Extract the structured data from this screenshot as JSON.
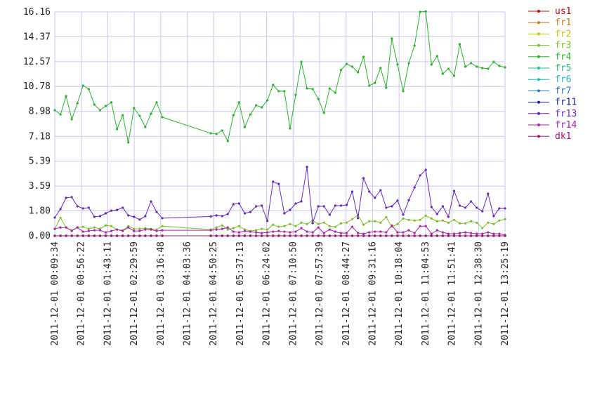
{
  "chart_data": {
    "type": "line",
    "x": [
      "2011-12-01 00:09:34",
      "2011-12-01 00:19:34",
      "2011-12-01 00:29:34",
      "2011-12-01 00:39:34",
      "2011-12-01 00:49:34",
      "2011-12-01 00:59:34",
      "2011-12-01 01:09:34",
      "2011-12-01 01:19:34",
      "2011-12-01 01:29:34",
      "2011-12-01 01:39:34",
      "2011-12-01 01:49:34",
      "2011-12-01 01:59:34",
      "2011-12-01 02:09:34",
      "2011-12-01 02:19:34",
      "2011-12-01 02:29:34",
      "2011-12-01 02:39:34",
      "2011-12-01 02:49:34",
      "2011-12-01 02:59:34",
      "2011-12-01 03:09:34",
      "2011-12-01 03:19:34",
      "2011-12-01 04:45:19",
      "2011-12-01 04:55:19",
      "2011-12-01 05:05:19",
      "2011-12-01 05:15:19",
      "2011-12-01 05:25:19",
      "2011-12-01 05:35:19",
      "2011-12-01 05:45:19",
      "2011-12-01 05:55:19",
      "2011-12-01 06:05:19",
      "2011-12-01 06:15:19",
      "2011-12-01 06:25:19",
      "2011-12-01 06:35:19",
      "2011-12-01 06:45:19",
      "2011-12-01 06:55:19",
      "2011-12-01 07:05:19",
      "2011-12-01 07:15:19",
      "2011-12-01 07:25:19",
      "2011-12-01 07:35:19",
      "2011-12-01 07:45:19",
      "2011-12-01 07:55:19",
      "2011-12-01 08:05:19",
      "2011-12-01 08:15:19",
      "2011-12-01 08:25:19",
      "2011-12-01 08:35:19",
      "2011-12-01 08:45:19",
      "2011-12-01 08:55:19",
      "2011-12-01 09:05:19",
      "2011-12-01 09:15:19",
      "2011-12-01 09:25:19",
      "2011-12-01 09:35:19",
      "2011-12-01 09:45:19",
      "2011-12-01 09:55:19",
      "2011-12-01 10:05:19",
      "2011-12-01 10:15:19",
      "2011-12-01 10:25:19",
      "2011-12-01 10:35:19",
      "2011-12-01 10:45:19",
      "2011-12-01 10:55:19",
      "2011-12-01 11:05:19",
      "2011-12-01 11:15:19",
      "2011-12-01 11:25:19",
      "2011-12-01 11:35:19",
      "2011-12-01 11:45:19",
      "2011-12-01 11:55:19",
      "2011-12-01 12:05:19",
      "2011-12-01 12:15:19",
      "2011-12-01 12:25:19",
      "2011-12-01 12:35:19",
      "2011-12-01 12:45:19",
      "2011-12-01 12:55:19",
      "2011-12-01 13:05:19",
      "2011-12-01 13:15:19",
      "2011-12-01 13:25:19"
    ],
    "xlim": [
      "2011-12-01 00:09:34",
      "2011-12-01 13:25:19"
    ],
    "xticks": [
      "2011-12-01 00:09:34",
      "2011-12-01 00:56:22",
      "2011-12-01 01:43:11",
      "2011-12-01 02:29:59",
      "2011-12-01 03:16:48",
      "2011-12-01 04:03:36",
      "2011-12-01 04:50:25",
      "2011-12-01 05:37:13",
      "2011-12-01 06:24:02",
      "2011-12-01 07:10:50",
      "2011-12-01 07:57:39",
      "2011-12-01 08:44:27",
      "2011-12-01 09:31:16",
      "2011-12-01 10:18:04",
      "2011-12-01 11:04:53",
      "2011-12-01 11:51:41",
      "2011-12-01 12:38:30",
      "2011-12-01 13:25:19"
    ],
    "ylim": [
      0,
      16.16
    ],
    "yticks": [
      {
        "value": 0,
        "label": "0.00"
      },
      {
        "value": 1.8,
        "label": "1.80"
      },
      3.59,
      5.39,
      7.18,
      8.98,
      10.78,
      12.57,
      14.37,
      16.16
    ],
    "grid": true,
    "legend": "right",
    "series": [
      {
        "name": "us1",
        "color": "#cc0000",
        "values": [
          0,
          0,
          0,
          0,
          0,
          0,
          0,
          0,
          0,
          0,
          0,
          0,
          0,
          0,
          0,
          0,
          0,
          0,
          0,
          0,
          0,
          0,
          0,
          0,
          0,
          0,
          0,
          0,
          0,
          0,
          0,
          0,
          0,
          0,
          0,
          0,
          0,
          0,
          0,
          0,
          0,
          0,
          0,
          0,
          0,
          0,
          0,
          0,
          0,
          0,
          0,
          0,
          0,
          0,
          0,
          0,
          0,
          0,
          0,
          0,
          0,
          0,
          0,
          0,
          0,
          0,
          0,
          0,
          0,
          0,
          0,
          0,
          0
        ]
      },
      {
        "name": "fr1",
        "color": "#d07a10",
        "values": [
          0,
          0,
          0,
          0,
          0,
          0,
          0,
          0,
          0,
          0,
          0,
          0,
          0,
          0,
          0,
          0,
          0,
          0,
          0,
          0,
          0,
          0,
          0,
          0,
          0,
          0,
          0,
          0,
          0,
          0,
          0,
          0,
          0,
          0,
          0,
          0,
          0,
          0,
          0,
          0,
          0,
          0,
          0,
          0,
          0,
          0,
          0,
          0,
          0,
          0,
          0,
          0,
          0,
          0,
          0,
          0,
          0,
          0,
          0,
          0,
          0,
          0,
          0,
          0,
          0,
          0,
          0,
          0,
          0,
          0,
          0,
          0,
          0
        ]
      },
      {
        "name": "fr2",
        "color": "#b8c800",
        "values": [
          0,
          0,
          0,
          0,
          0,
          0,
          0,
          0,
          0,
          0,
          0,
          0,
          0,
          0,
          0,
          0,
          0,
          0,
          0,
          0,
          0,
          0,
          0,
          0,
          0,
          0,
          0,
          0,
          0,
          0,
          0,
          0,
          0,
          0,
          0,
          0,
          0,
          0,
          0,
          0,
          0,
          0,
          0,
          0,
          0,
          0,
          0,
          0,
          0,
          0,
          0,
          0,
          0,
          0,
          0,
          0,
          0,
          0,
          0,
          0,
          0,
          0,
          0,
          0,
          0,
          0,
          0,
          0,
          0,
          0,
          0,
          0,
          0
        ]
      },
      {
        "name": "fr3",
        "color": "#7cc022",
        "values": [
          0.5,
          1.3,
          0.6,
          0.4,
          0.6,
          0.65,
          0.5,
          0.6,
          0.5,
          0.75,
          0.7,
          0.45,
          0.4,
          0.7,
          0.5,
          0.5,
          0.55,
          0.5,
          0.45,
          0.7,
          0.45,
          0.6,
          0.75,
          0.45,
          0.55,
          0.7,
          0.45,
          0.35,
          0.4,
          0.5,
          0.45,
          0.8,
          0.65,
          0.7,
          0.85,
          0.7,
          0.95,
          0.85,
          1.1,
          0.85,
          0.95,
          0.7,
          0.65,
          0.9,
          0.95,
          1.2,
          1.5,
          0.8,
          1.05,
          1.05,
          0.95,
          1.35,
          0.65,
          0.85,
          1.25,
          1.15,
          1.1,
          1.15,
          1.45,
          1.25,
          1.05,
          1.1,
          0.95,
          1.15,
          0.9,
          0.9,
          1.05,
          0.95,
          0.55,
          0.95,
          0.85,
          1.1,
          1.2
        ]
      },
      {
        "name": "fr4",
        "color": "#22b822",
        "values": [
          9.07,
          8.76,
          10.08,
          8.41,
          9.57,
          10.84,
          10.59,
          9.47,
          9.07,
          9.37,
          9.63,
          7.7,
          8.71,
          6.74,
          9.22,
          8.66,
          7.85,
          8.81,
          9.63,
          8.56,
          7.4,
          7.35,
          7.6,
          6.84,
          8.71,
          9.63,
          7.85,
          8.76,
          9.42,
          9.27,
          9.78,
          10.89,
          10.44,
          10.44,
          7.75,
          10.18,
          12.56,
          10.64,
          10.59,
          9.88,
          8.87,
          10.64,
          10.33,
          11.96,
          12.41,
          12.21,
          11.8,
          12.92,
          10.84,
          11.04,
          12.11,
          10.69,
          14.24,
          12.36,
          10.44,
          12.46,
          13.73,
          16.16,
          16.2,
          12.36,
          12.97,
          11.7,
          12.06,
          11.55,
          13.83,
          12.21,
          12.46,
          12.21,
          12.11,
          12.06,
          12.56,
          12.26,
          12.16
        ]
      },
      {
        "name": "fr5",
        "color": "#20c080",
        "values": [
          0,
          0,
          0,
          0,
          0,
          0,
          0,
          0,
          0,
          0,
          0,
          0,
          0,
          0,
          0,
          0,
          0,
          0,
          0,
          0,
          0,
          0,
          0,
          0,
          0,
          0,
          0,
          0,
          0,
          0,
          0,
          0,
          0,
          0,
          0,
          0,
          0,
          0,
          0,
          0,
          0,
          0,
          0,
          0,
          0,
          0,
          0,
          0,
          0,
          0,
          0,
          0,
          0,
          0,
          0,
          0,
          0,
          0,
          0,
          0,
          0,
          0,
          0,
          0,
          0,
          0,
          0,
          0,
          0,
          0,
          0,
          0,
          0
        ]
      },
      {
        "name": "fr6",
        "color": "#20b8c0",
        "values": [
          0,
          0,
          0,
          0,
          0,
          0,
          0,
          0,
          0,
          0,
          0,
          0,
          0,
          0,
          0,
          0,
          0,
          0,
          0,
          0,
          0,
          0,
          0,
          0,
          0,
          0,
          0,
          0,
          0,
          0,
          0,
          0,
          0,
          0,
          0,
          0,
          0,
          0,
          0,
          0,
          0,
          0,
          0,
          0,
          0,
          0,
          0,
          0,
          0,
          0,
          0,
          0,
          0,
          0,
          0,
          0,
          0,
          0,
          0,
          0,
          0,
          0,
          0,
          0,
          0,
          0,
          0,
          0,
          0,
          0,
          0,
          0,
          0
        ]
      },
      {
        "name": "fr7",
        "color": "#2a78c0",
        "values": [
          0,
          0,
          0,
          0,
          0,
          0,
          0,
          0,
          0,
          0,
          0,
          0,
          0,
          0,
          0,
          0,
          0,
          0,
          0,
          0,
          0,
          0,
          0,
          0,
          0,
          0,
          0,
          0,
          0,
          0,
          0,
          0,
          0,
          0,
          0,
          0,
          0,
          0,
          0,
          0,
          0,
          0,
          0,
          0,
          0,
          0,
          0,
          0,
          0,
          0,
          0,
          0,
          0,
          0,
          0,
          0,
          0,
          0,
          0,
          0,
          0,
          0,
          0,
          0,
          0,
          0,
          0,
          0,
          0,
          0,
          0,
          0,
          0
        ]
      },
      {
        "name": "fr11",
        "color": "#1a1aa8",
        "values": [
          0,
          0,
          0,
          0,
          0,
          0,
          0,
          0,
          0,
          0,
          0,
          0,
          0,
          0,
          0,
          0,
          0,
          0,
          0,
          0,
          0,
          0,
          0,
          0,
          0,
          0,
          0,
          0,
          0,
          0,
          0,
          0,
          0,
          0,
          0,
          0,
          0,
          0,
          0,
          0,
          0,
          0,
          0,
          0,
          0,
          0,
          0,
          0,
          0,
          0,
          0,
          0,
          0,
          0,
          0,
          0,
          0,
          0,
          0,
          0,
          0,
          0,
          0,
          0,
          0,
          0,
          0,
          0,
          0,
          0,
          0,
          0,
          0
        ]
      },
      {
        "name": "fr13",
        "color": "#6a22c8",
        "values": [
          1.32,
          1.93,
          2.74,
          2.79,
          2.13,
          1.98,
          2.03,
          1.37,
          1.42,
          1.62,
          1.82,
          1.87,
          2.03,
          1.47,
          1.37,
          1.17,
          1.42,
          2.48,
          1.72,
          1.27,
          1.4,
          1.47,
          1.42,
          1.57,
          2.28,
          2.33,
          1.62,
          1.72,
          2.13,
          2.18,
          1.07,
          3.9,
          3.75,
          1.62,
          1.87,
          2.33,
          2.48,
          4.97,
          0.91,
          2.13,
          2.13,
          1.52,
          2.18,
          2.18,
          2.23,
          3.19,
          1.27,
          4.16,
          3.19,
          2.74,
          3.29,
          2.03,
          2.13,
          2.54,
          1.52,
          2.58,
          3.49,
          4.36,
          4.76,
          2.08,
          1.57,
          2.13,
          1.37,
          3.24,
          2.18,
          2.03,
          2.48,
          2.03,
          1.77,
          3.04,
          1.42,
          1.98,
          1.98
        ]
      },
      {
        "name": "fr14",
        "color": "#b020b0",
        "values": [
          0.5,
          0.6,
          0.6,
          0.35,
          0.6,
          0.3,
          0.35,
          0.4,
          0.4,
          0.25,
          0.35,
          0.45,
          0.35,
          0.6,
          0.35,
          0.35,
          0.45,
          0.45,
          0.35,
          0.4,
          0.4,
          0.45,
          0.5,
          0.6,
          0.3,
          0.25,
          0.35,
          0.3,
          0.25,
          0.2,
          0.25,
          0.3,
          0.35,
          0.3,
          0.25,
          0.3,
          0.55,
          0.3,
          0.25,
          0.6,
          0.2,
          0.45,
          0.3,
          0.2,
          0.2,
          0.65,
          0.2,
          0.15,
          0.25,
          0.3,
          0.3,
          0.25,
          0.75,
          0.25,
          0.25,
          0.4,
          0.2,
          0.7,
          0.7,
          0.15,
          0.4,
          0.25,
          0.15,
          0.15,
          0.2,
          0.25,
          0.2,
          0.15,
          0.15,
          0.25,
          0.15,
          0.15,
          0.05
        ]
      },
      {
        "name": "dk1",
        "color": "#b0106a",
        "values": [
          0,
          0,
          0,
          0,
          0,
          0,
          0,
          0,
          0,
          0,
          0,
          0,
          0,
          0,
          0,
          0,
          0,
          0,
          0,
          0,
          0,
          0,
          0,
          0,
          0,
          0,
          0,
          0,
          0,
          0,
          0,
          0,
          0,
          0,
          0,
          0,
          0,
          0,
          0,
          0,
          0,
          0,
          0,
          0,
          0,
          0,
          0,
          0,
          0,
          0,
          0,
          0,
          0,
          0,
          0,
          0,
          0,
          0,
          0,
          0,
          0,
          0,
          0,
          0,
          0,
          0,
          0,
          0,
          0,
          0,
          0,
          0,
          0
        ]
      }
    ]
  }
}
